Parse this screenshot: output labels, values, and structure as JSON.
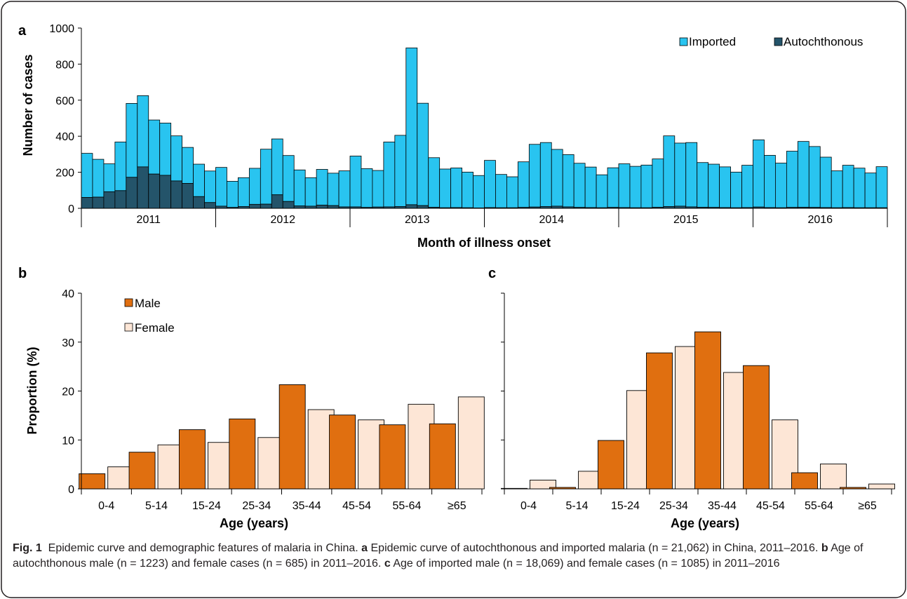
{
  "colors": {
    "imported": "#29C4F0",
    "autochthonous": "#24546A",
    "male": "#E06F10",
    "female": "#FDE6D6",
    "border": "#231F20"
  },
  "caption": {
    "label": "Fig. 1",
    "intro": "Epidemic curve and demographic features of malaria in China.",
    "a_label": "a",
    "a_text": "Epidemic curve of autochthonous and imported malaria (n = 21,062) in China, 2011–2016.",
    "b_label": "b",
    "b_text": "Age of autochthonous male (n = 1223) and female cases (n = 685) in 2011–2016.",
    "c_label": "c",
    "c_text": "Age of imported male (n = 18,069) and female cases (n = 1085) in 2011–2016"
  },
  "chart_data": [
    {
      "panel": "a",
      "type": "bar",
      "stacked": true,
      "xlabel": "Month of illness onset",
      "ylabel": "Number of cases",
      "ylim": [
        0,
        1000
      ],
      "yticks": [
        0,
        200,
        400,
        600,
        800,
        1000
      ],
      "year_labels": [
        "2011",
        "2012",
        "2013",
        "2014",
        "2015",
        "2016"
      ],
      "months_per_year": 12,
      "legend_position": "top-right",
      "grid": false,
      "series": [
        {
          "name": "Imported",
          "values": [
            245,
            210,
            155,
            270,
            410,
            395,
            300,
            290,
            250,
            200,
            180,
            175,
            215,
            145,
            160,
            200,
            305,
            310,
            255,
            200,
            158,
            198,
            180,
            200,
            282,
            215,
            203,
            360,
            395,
            870,
            568,
            275,
            215,
            220,
            198,
            180,
            262,
            185,
            172,
            253,
            348,
            355,
            315,
            290,
            245,
            225,
            183,
            220,
            243,
            230,
            237,
            268,
            392,
            350,
            357,
            248,
            240,
            226,
            198,
            235,
            373,
            290,
            248,
            312,
            365,
            338,
            280,
            205,
            235,
            220,
            193,
            228
          ]
        },
        {
          "name": "Autochthonous",
          "values": [
            60,
            62,
            92,
            98,
            172,
            230,
            190,
            183,
            152,
            138,
            65,
            32,
            12,
            5,
            10,
            22,
            23,
            75,
            38,
            13,
            12,
            18,
            15,
            8,
            8,
            5,
            7,
            8,
            10,
            20,
            15,
            6,
            3,
            4,
            3,
            2,
            4,
            3,
            3,
            5,
            7,
            10,
            12,
            8,
            5,
            4,
            3,
            5,
            4,
            3,
            3,
            6,
            10,
            12,
            8,
            6,
            5,
            4,
            3,
            4,
            7,
            4,
            3,
            5,
            6,
            5,
            4,
            3,
            4,
            3,
            3,
            3
          ]
        }
      ]
    },
    {
      "panel": "b",
      "type": "bar",
      "xlabel": "Age (years)",
      "ylabel": "Proportion (%)",
      "ylim": [
        0,
        40
      ],
      "yticks": [
        0,
        10,
        20,
        30,
        40
      ],
      "categories": [
        "0-4",
        "5-14",
        "15-24",
        "25-34",
        "35-44",
        "45-54",
        "55-64",
        "≥65"
      ],
      "legend_position": "top-left",
      "grid": false,
      "series": [
        {
          "name": "Male",
          "values": [
            3.1,
            7.5,
            12.1,
            14.3,
            21.3,
            15.1,
            13.1,
            13.3
          ]
        },
        {
          "name": "Female",
          "values": [
            4.5,
            9.0,
            9.5,
            10.5,
            16.2,
            14.1,
            17.3,
            18.8
          ]
        }
      ]
    },
    {
      "panel": "c",
      "type": "bar",
      "xlabel": "Age (years)",
      "ylim": [
        0,
        40
      ],
      "categories": [
        "0-4",
        "5-14",
        "15-24",
        "25-34",
        "35-44",
        "45-54",
        "55-64",
        "≥65"
      ],
      "grid": false,
      "series": [
        {
          "values": [
            0.1,
            0.3,
            9.9,
            27.8,
            32.1,
            25.2,
            3.3,
            0.3
          ]
        },
        {
          "values": [
            1.8,
            3.6,
            20.1,
            29.1,
            23.8,
            14.1,
            5.1,
            1.0
          ]
        }
      ]
    }
  ]
}
